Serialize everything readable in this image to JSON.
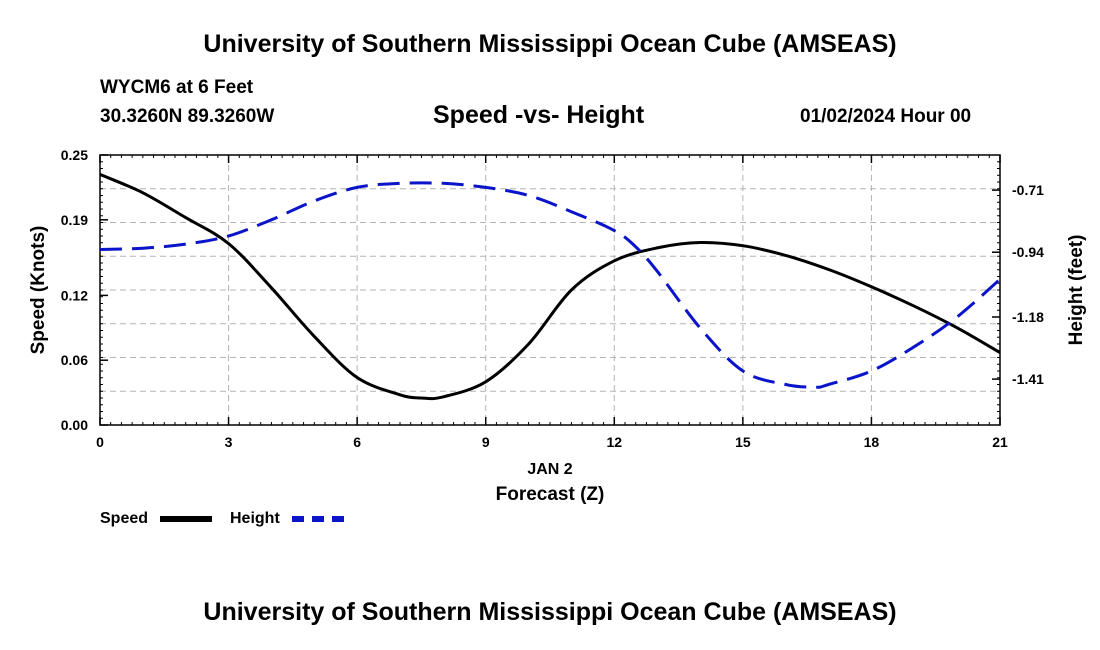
{
  "header": {
    "title": "University of Southern Mississippi Ocean Cube (AMSEAS)",
    "station": "WYCM6 at 6 Feet",
    "coords": "30.3260N  89.3260W",
    "subtitle": "Speed -vs- Height",
    "datestamp": "01/02/2024 Hour 00"
  },
  "footer": {
    "title": "University of Southern Mississippi Ocean Cube (AMSEAS)"
  },
  "legend": {
    "speed_label": "Speed",
    "height_label": "Height"
  },
  "colors": {
    "speed": "#000000",
    "height": "#0a14c8",
    "grid": "#b4b4b4"
  },
  "chart_data": {
    "type": "line",
    "title": "Speed -vs- Height",
    "xlabel": "Forecast (Z)",
    "xsublabel": "JAN 2",
    "ylabel": "Speed (Knots)",
    "y2label": "Height (feet)",
    "xlim": [
      0,
      21
    ],
    "ylim": [
      0,
      0.25
    ],
    "y2lim": [
      -1.58,
      -0.58
    ],
    "xticks": [
      0,
      3,
      6,
      9,
      12,
      15,
      18,
      21
    ],
    "yticks": [
      0.0,
      0.06,
      0.12,
      0.19,
      0.25
    ],
    "ytick_labels": [
      "0.00",
      "0.06",
      "0.12",
      "0.19",
      "0.25"
    ],
    "y2ticks": [
      -0.71,
      -0.94,
      -1.18,
      -1.41
    ],
    "y2tick_labels": [
      "-0.71",
      "-0.94",
      "-1.18",
      "-1.41"
    ],
    "grid": true,
    "series": [
      {
        "name": "Speed",
        "axis": "left",
        "style": "solid",
        "x": [
          0,
          1,
          2,
          3,
          4,
          5,
          6,
          7,
          7.5,
          8,
          9,
          10,
          11,
          12,
          13,
          14,
          15,
          16,
          17,
          18,
          19,
          20,
          21
        ],
        "y": [
          0.232,
          0.215,
          0.192,
          0.168,
          0.127,
          0.082,
          0.044,
          0.028,
          0.025,
          0.026,
          0.04,
          0.075,
          0.125,
          0.152,
          0.164,
          0.169,
          0.166,
          0.157,
          0.144,
          0.128,
          0.11,
          0.09,
          0.067
        ]
      },
      {
        "name": "Height",
        "axis": "right",
        "style": "dashed",
        "x": [
          0,
          1,
          2,
          3,
          4,
          5,
          6,
          7,
          8,
          9,
          10,
          11,
          12,
          12.5,
          13,
          14,
          15,
          16,
          16.7,
          17,
          18,
          19,
          20,
          21
        ],
        "y": [
          -0.93,
          -0.925,
          -0.91,
          -0.88,
          -0.82,
          -0.75,
          -0.7,
          -0.685,
          -0.685,
          -0.7,
          -0.73,
          -0.79,
          -0.86,
          -0.92,
          -1.01,
          -1.22,
          -1.38,
          -1.43,
          -1.44,
          -1.43,
          -1.38,
          -1.29,
          -1.18,
          -1.04
        ]
      }
    ]
  }
}
